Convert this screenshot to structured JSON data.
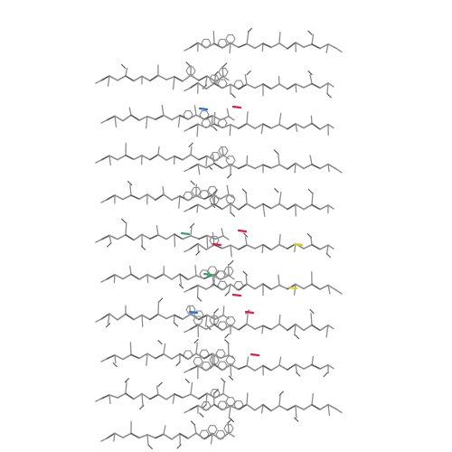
{
  "image": {
    "kind": "molecular-structure-render",
    "style": "stick",
    "background_color": "#ffffff",
    "colors": {
      "carbon": "#8c8c8c",
      "carbon_dark": "#5a5a5a",
      "oxygen": "#e8174a",
      "nitrogen": "#2a6fd6",
      "sulfur": "#d8d01a",
      "highlight_green": "#2fa36b"
    },
    "layers": 10
  }
}
